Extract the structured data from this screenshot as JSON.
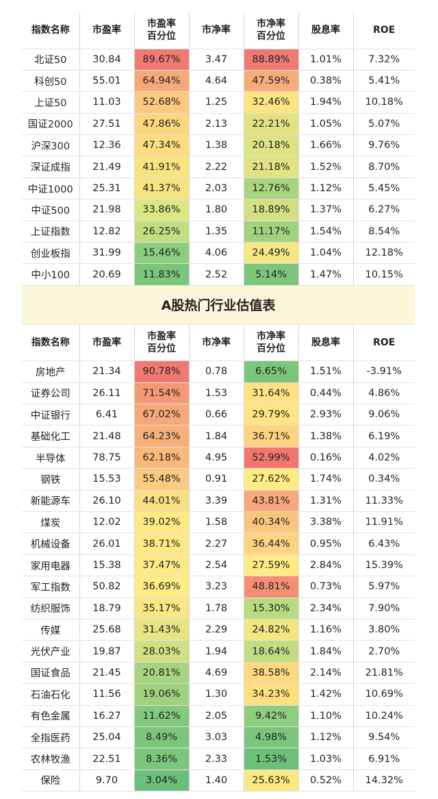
{
  "headers": [
    "指数名称",
    "市盈率",
    "市盈率\n百分位",
    "市净率",
    "市净率\n百分位",
    "股息率",
    "ROE"
  ],
  "section_title": "A股热门行业估值表",
  "index_rows": [
    [
      "北证50",
      "30.84",
      "89.67%",
      "3.47",
      "88.89%",
      "1.01%",
      "7.32%"
    ],
    [
      "科创50",
      "55.01",
      "64.94%",
      "4.64",
      "47.59%",
      "0.38%",
      "5.41%"
    ],
    [
      "上证50",
      "11.03",
      "52.68%",
      "1.25",
      "32.46%",
      "1.94%",
      "10.18%"
    ],
    [
      "国证2000",
      "27.51",
      "47.86%",
      "2.13",
      "22.21%",
      "1.05%",
      "5.07%"
    ],
    [
      "沪深300",
      "12.36",
      "47.34%",
      "1.38",
      "20.18%",
      "1.66%",
      "9.76%"
    ],
    [
      "深证成指",
      "21.49",
      "41.91%",
      "2.22",
      "21.18%",
      "1.52%",
      "8.70%"
    ],
    [
      "中证1000",
      "25.31",
      "41.37%",
      "2.03",
      "12.76%",
      "1.12%",
      "5.45%"
    ],
    [
      "中证500",
      "21.98",
      "33.86%",
      "1.80",
      "18.89%",
      "1.37%",
      "6.27%"
    ],
    [
      "上证指数",
      "12.82",
      "26.25%",
      "1.35",
      "11.17%",
      "1.54%",
      "8.54%"
    ],
    [
      "创业板指",
      "31.99",
      "15.46%",
      "4.06",
      "24.49%",
      "1.04%",
      "12.18%"
    ],
    [
      "中小100",
      "20.69",
      "11.83%",
      "2.52",
      "5.14%",
      "1.47%",
      "10.15%"
    ]
  ],
  "industry_rows": [
    [
      "房地产",
      "21.34",
      "90.78%",
      "0.78",
      "6.65%",
      "1.51%",
      "-3.91%"
    ],
    [
      "证券公司",
      "26.11",
      "71.54%",
      "1.53",
      "31.64%",
      "0.44%",
      "4.86%"
    ],
    [
      "中证银行",
      "6.41",
      "67.02%",
      "0.66",
      "29.79%",
      "2.93%",
      "9.06%"
    ],
    [
      "基础化工",
      "21.48",
      "64.23%",
      "1.84",
      "36.71%",
      "1.38%",
      "6.19%"
    ],
    [
      "半导体",
      "78.75",
      "62.18%",
      "4.95",
      "52.99%",
      "0.16%",
      "4.02%"
    ],
    [
      "钢铁",
      "15.53",
      "55.48%",
      "0.91",
      "27.62%",
      "1.74%",
      "0.34%"
    ],
    [
      "新能源车",
      "26.10",
      "44.01%",
      "3.39",
      "43.81%",
      "1.31%",
      "11.33%"
    ],
    [
      "煤炭",
      "12.02",
      "39.02%",
      "1.58",
      "40.34%",
      "3.38%",
      "11.91%"
    ],
    [
      "机械设备",
      "26.01",
      "38.71%",
      "2.27",
      "36.44%",
      "0.95%",
      "6.43%"
    ],
    [
      "家用电器",
      "15.38",
      "37.47%",
      "2.54",
      "27.59%",
      "2.84%",
      "15.39%"
    ],
    [
      "军工指数",
      "50.82",
      "36.69%",
      "3.23",
      "48.81%",
      "0.73%",
      "5.97%"
    ],
    [
      "纺织服饰",
      "18.79",
      "35.17%",
      "1.78",
      "15.30%",
      "2.34%",
      "7.90%"
    ],
    [
      "传媒",
      "25.68",
      "31.43%",
      "2.29",
      "24.82%",
      "1.16%",
      "3.80%"
    ],
    [
      "光伏产业",
      "19.87",
      "28.03%",
      "1.94",
      "18.64%",
      "1.84%",
      "2.70%"
    ],
    [
      "国证食品",
      "21.45",
      "20.81%",
      "4.69",
      "38.58%",
      "2.14%",
      "21.81%"
    ],
    [
      "石油石化",
      "11.56",
      "19.06%",
      "1.30",
      "34.23%",
      "1.42%",
      "10.69%"
    ],
    [
      "有色金属",
      "16.27",
      "11.62%",
      "2.05",
      "9.42%",
      "1.10%",
      "10.24%"
    ],
    [
      "全指医药",
      "25.04",
      "8.49%",
      "3.03",
      "4.98%",
      "1.12%",
      "9.54%"
    ],
    [
      "农林牧渔",
      "22.51",
      "8.36%",
      "2.33",
      "1.53%",
      "1.03%",
      "6.91%"
    ],
    [
      "保险",
      "9.70",
      "3.04%",
      "1.40",
      "25.63%",
      "0.52%",
      "14.32%"
    ]
  ],
  "heat_colors": {
    "pe_pct": {
      "index": [
        "#f07a72",
        "#f6a978",
        "#fbc97f",
        "#fbd67f",
        "#fcdc7f",
        "#f8e47f",
        "#f6e47f",
        "#dce682",
        "#c3dd81",
        "#8ccd7e",
        "#7cc67c"
      ],
      "industry": [
        "#f07a72",
        "#f49876",
        "#f6a878",
        "#f8b07a",
        "#f9b97c",
        "#fbc97f",
        "#fcdf81",
        "#feea84",
        "#fee984",
        "#feea84",
        "#feeb84",
        "#f6e884",
        "#e6e483",
        "#d2df82",
        "#a8d47f",
        "#a0d17f",
        "#83c97c",
        "#7cc67c",
        "#7bc67c",
        "#6abf7a"
      ]
    },
    "pb_pct": {
      "index": [
        "#f07a72",
        "#f8ac79",
        "#fde383",
        "#e2e282",
        "#dde282",
        "#e1e282",
        "#a9d57f",
        "#d3df82",
        "#a1d27e",
        "#f5e884",
        "#7cc67c"
      ],
      "industry": [
        "#7cc67c",
        "#fee283",
        "#fee482",
        "#fdd280",
        "#f0766e",
        "#ffeb84",
        "#f8a879",
        "#fac67f",
        "#fcd380",
        "#ffeb84",
        "#f58f74",
        "#b9da80",
        "#f2e683",
        "#c2dc81",
        "#fed97f",
        "#fedf80",
        "#8ccd7e",
        "#79c57b",
        "#6dc07a",
        "#fbe883"
      ]
    }
  }
}
